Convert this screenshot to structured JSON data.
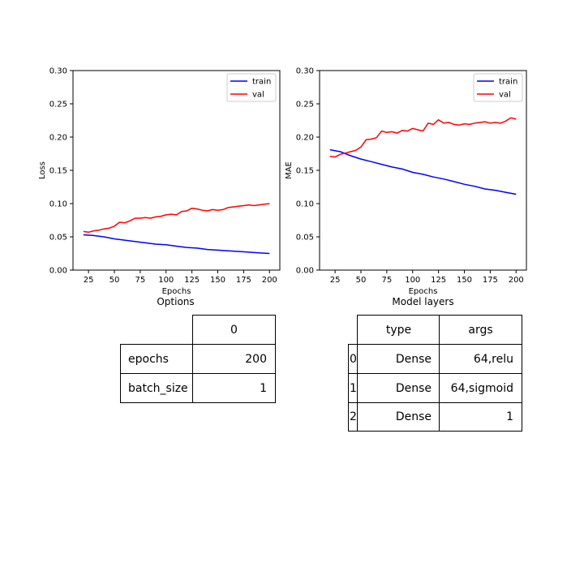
{
  "chart_data": [
    {
      "type": "line",
      "xlabel": "Epochs",
      "ylabel": "Loss",
      "xlim": [
        10,
        210
      ],
      "ylim": [
        0.0,
        0.3
      ],
      "xticks": [
        25,
        50,
        75,
        100,
        125,
        150,
        175,
        200
      ],
      "yticks": [
        0.0,
        0.05,
        0.1,
        0.15,
        0.2,
        0.25,
        0.3
      ],
      "ytick_labels": [
        "0.00",
        "0.05",
        "0.10",
        "0.15",
        "0.20",
        "0.25",
        "0.30"
      ],
      "legend": {
        "placement": "upper right",
        "entries": [
          "train",
          "val"
        ]
      },
      "grid": false,
      "series": [
        {
          "name": "train",
          "color": "#0000ff",
          "x": [
            20,
            30,
            40,
            50,
            60,
            70,
            80,
            90,
            100,
            110,
            120,
            130,
            140,
            150,
            160,
            170,
            180,
            190,
            200
          ],
          "values": [
            0.053,
            0.052,
            0.05,
            0.047,
            0.045,
            0.043,
            0.041,
            0.039,
            0.038,
            0.036,
            0.034,
            0.033,
            0.031,
            0.03,
            0.029,
            0.028,
            0.027,
            0.026,
            0.025
          ]
        },
        {
          "name": "val",
          "color": "#ff0000",
          "x": [
            20,
            25,
            30,
            35,
            40,
            45,
            50,
            55,
            60,
            65,
            70,
            75,
            80,
            85,
            90,
            95,
            100,
            105,
            110,
            115,
            120,
            125,
            130,
            135,
            140,
            145,
            150,
            155,
            160,
            165,
            170,
            175,
            180,
            185,
            190,
            195,
            200
          ],
          "values": [
            0.058,
            0.057,
            0.059,
            0.06,
            0.062,
            0.063,
            0.066,
            0.072,
            0.071,
            0.074,
            0.078,
            0.078,
            0.079,
            0.078,
            0.08,
            0.081,
            0.083,
            0.084,
            0.083,
            0.088,
            0.089,
            0.093,
            0.092,
            0.09,
            0.089,
            0.091,
            0.09,
            0.091,
            0.094,
            0.095,
            0.096,
            0.097,
            0.098,
            0.097,
            0.098,
            0.099,
            0.1
          ]
        }
      ]
    },
    {
      "type": "line",
      "xlabel": "Epochs",
      "ylabel": "MAE",
      "xlim": [
        10,
        210
      ],
      "ylim": [
        0.0,
        0.3
      ],
      "xticks": [
        25,
        50,
        75,
        100,
        125,
        150,
        175,
        200
      ],
      "yticks": [
        0.0,
        0.05,
        0.1,
        0.15,
        0.2,
        0.25,
        0.3
      ],
      "ytick_labels": [
        "0.00",
        "0.05",
        "0.10",
        "0.15",
        "0.20",
        "0.25",
        "0.30"
      ],
      "legend": {
        "placement": "upper right",
        "entries": [
          "train",
          "val"
        ]
      },
      "grid": false,
      "series": [
        {
          "name": "train",
          "color": "#0000ff",
          "x": [
            20,
            30,
            40,
            50,
            60,
            70,
            80,
            90,
            100,
            110,
            120,
            130,
            140,
            150,
            160,
            170,
            180,
            190,
            200
          ],
          "values": [
            0.181,
            0.178,
            0.172,
            0.167,
            0.163,
            0.159,
            0.155,
            0.152,
            0.147,
            0.144,
            0.14,
            0.137,
            0.133,
            0.129,
            0.126,
            0.122,
            0.12,
            0.117,
            0.114
          ]
        },
        {
          "name": "val",
          "color": "#ff0000",
          "x": [
            20,
            25,
            30,
            35,
            40,
            45,
            50,
            55,
            60,
            65,
            70,
            75,
            80,
            85,
            90,
            95,
            100,
            105,
            110,
            115,
            120,
            125,
            130,
            135,
            140,
            145,
            150,
            155,
            160,
            165,
            170,
            175,
            180,
            185,
            190,
            195,
            200
          ],
          "values": [
            0.171,
            0.17,
            0.174,
            0.176,
            0.178,
            0.18,
            0.185,
            0.196,
            0.197,
            0.199,
            0.209,
            0.207,
            0.208,
            0.206,
            0.21,
            0.209,
            0.213,
            0.211,
            0.209,
            0.221,
            0.219,
            0.226,
            0.221,
            0.222,
            0.219,
            0.218,
            0.22,
            0.219,
            0.221,
            0.222,
            0.223,
            0.221,
            0.222,
            0.221,
            0.224,
            0.229,
            0.227
          ]
        }
      ]
    }
  ],
  "tables": {
    "options": {
      "title": "Options",
      "header": "0",
      "rows": [
        {
          "label": "epochs",
          "value": "200"
        },
        {
          "label": "batch_size",
          "value": "1"
        }
      ]
    },
    "layers": {
      "title": "Model layers",
      "headers": [
        "type",
        "args"
      ],
      "rows": [
        {
          "index": "0",
          "type": "Dense",
          "args": "64,relu"
        },
        {
          "index": "1",
          "type": "Dense",
          "args": "64,sigmoid"
        },
        {
          "index": "2",
          "type": "Dense",
          "args": "1"
        }
      ]
    }
  }
}
